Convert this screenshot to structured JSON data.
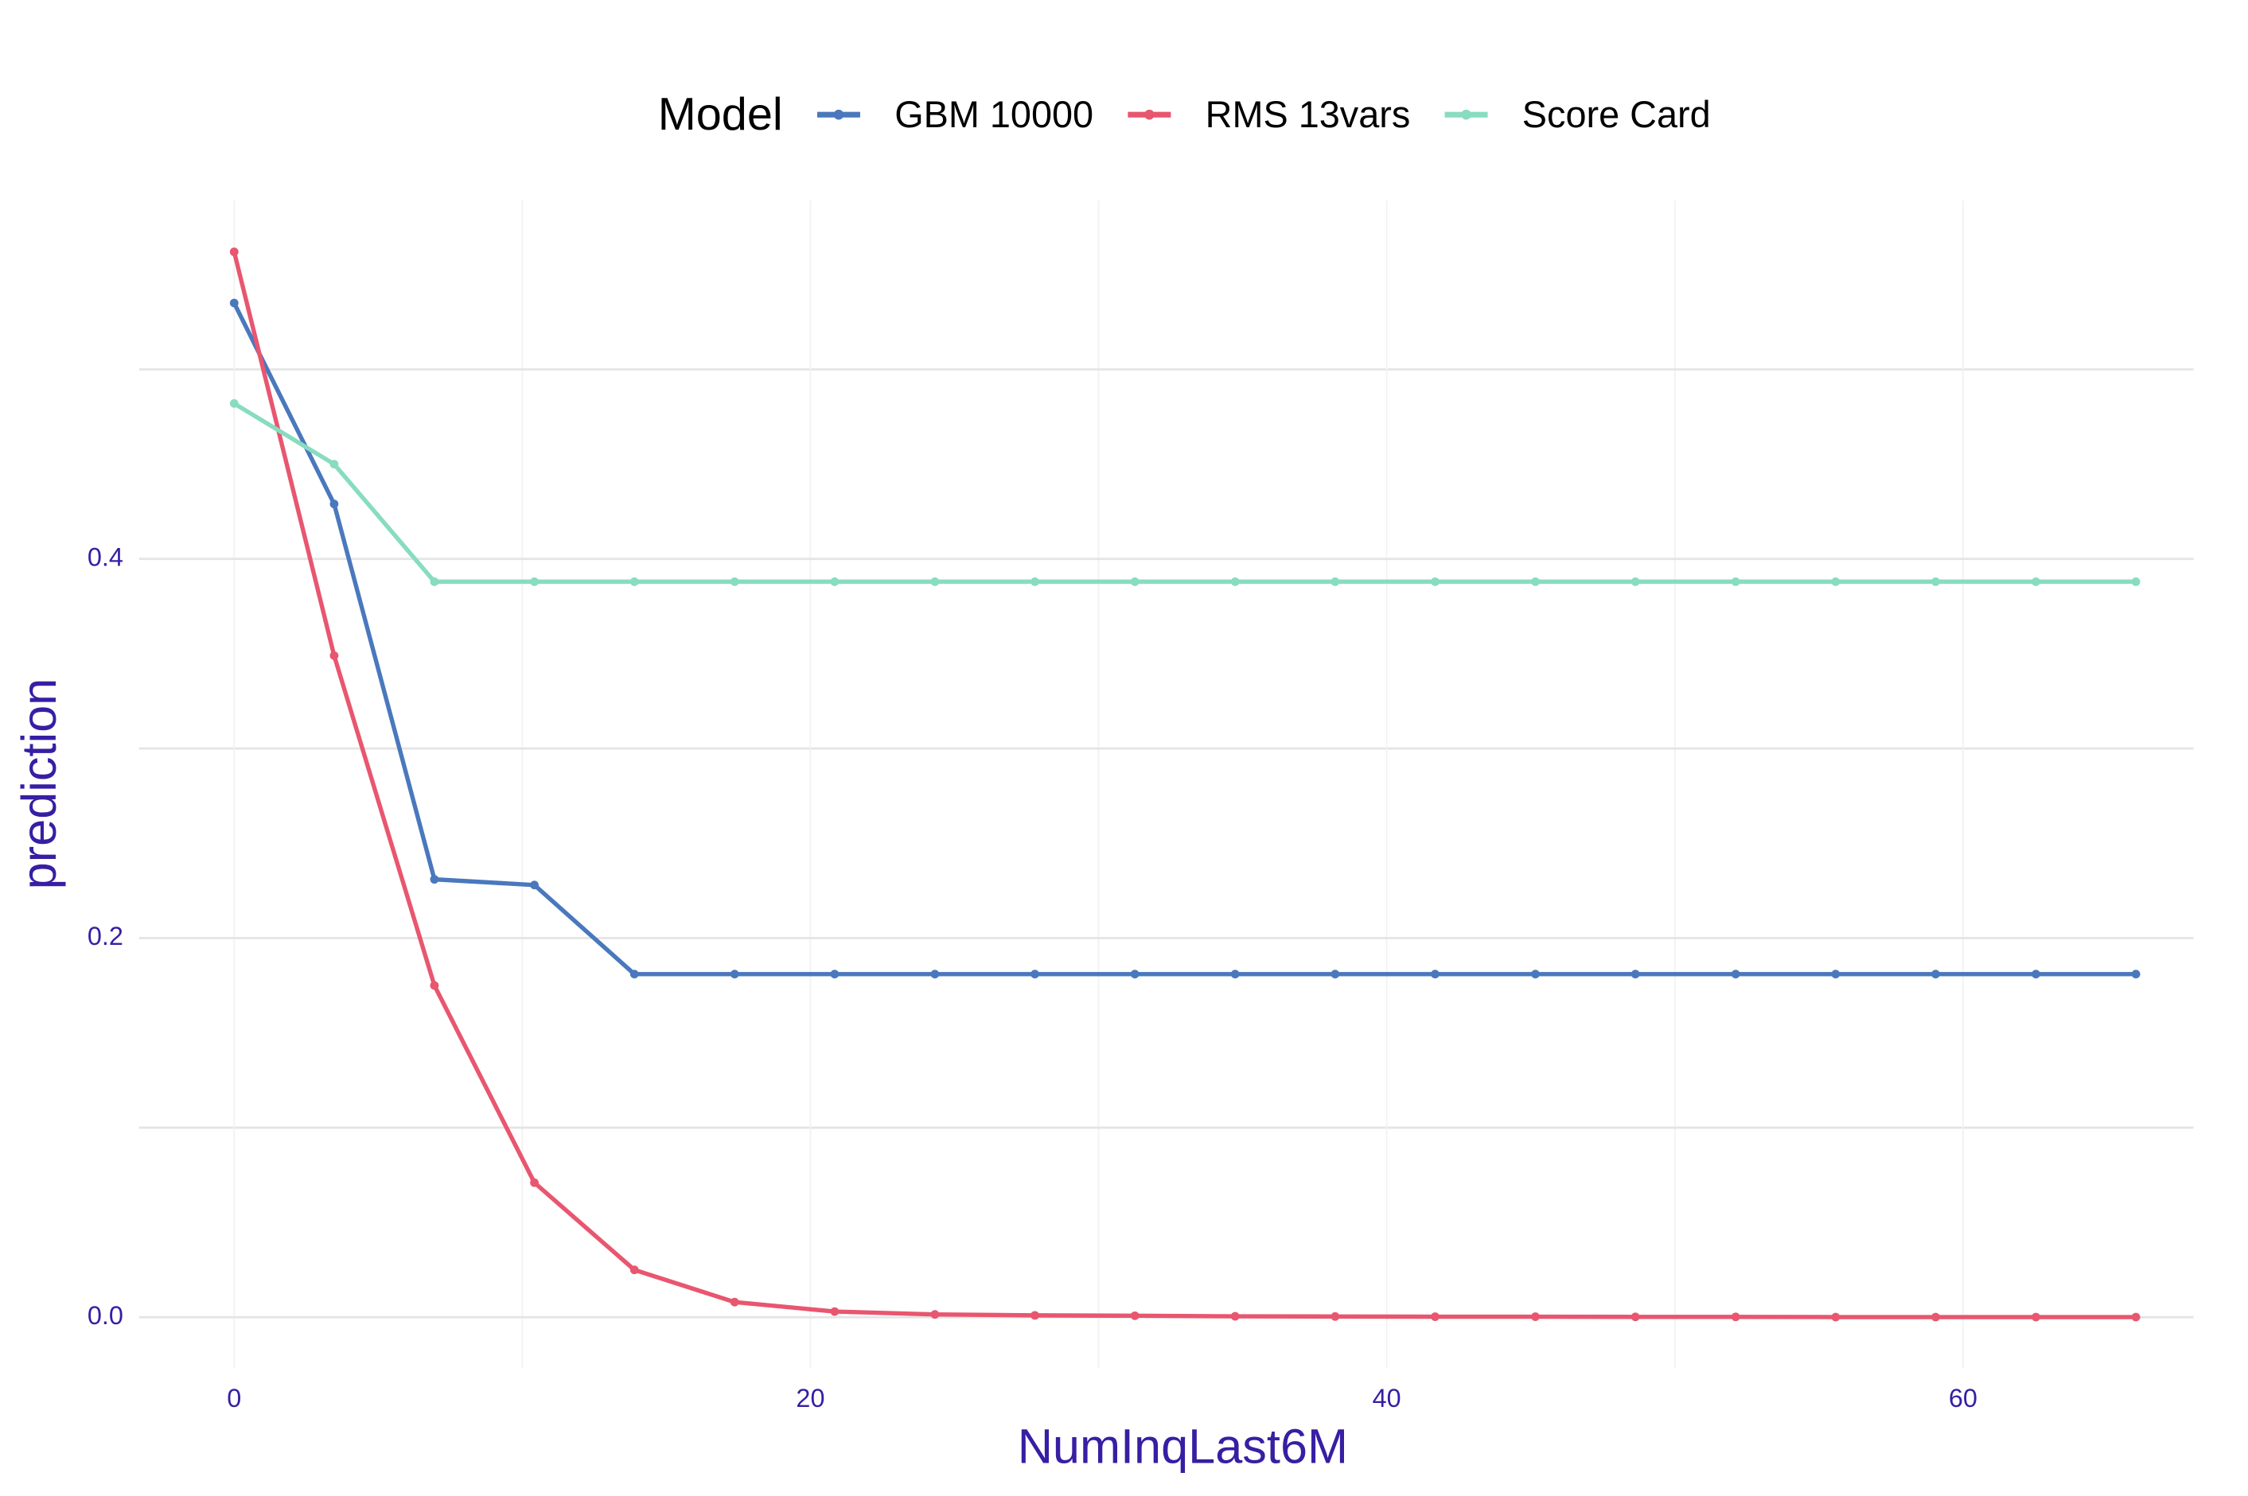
{
  "chart_data": {
    "type": "line",
    "legend_title": "Model",
    "x_label": "NumInqLast6M",
    "y_label": "prediction",
    "x": [
      0,
      3.47,
      6.95,
      10.42,
      13.89,
      17.37,
      20.84,
      24.32,
      27.79,
      31.26,
      34.74,
      38.21,
      41.68,
      45.16,
      48.63,
      52.11,
      55.58,
      59.05,
      62.53,
      66
    ],
    "series": [
      {
        "name": "GBM 10000",
        "color": "#4a78bd",
        "values": [
          0.535,
          0.429,
          0.231,
          0.228,
          0.181,
          0.181,
          0.181,
          0.181,
          0.181,
          0.181,
          0.181,
          0.181,
          0.181,
          0.181,
          0.181,
          0.181,
          0.181,
          0.181,
          0.181,
          0.181
        ]
      },
      {
        "name": "RMS 13vars",
        "color": "#e8566f",
        "values": [
          0.562,
          0.349,
          0.175,
          0.071,
          0.025,
          0.008,
          0.003,
          0.0015,
          0.001,
          0.0008,
          0.0005,
          0.0004,
          0.0003,
          0.0003,
          0.0002,
          0.0002,
          0.0001,
          0.0001,
          0.0001,
          0.0001
        ]
      },
      {
        "name": "Score Card",
        "color": "#88dcc0",
        "values": [
          0.482,
          0.45,
          0.388,
          0.388,
          0.388,
          0.388,
          0.388,
          0.388,
          0.388,
          0.388,
          0.388,
          0.388,
          0.388,
          0.388,
          0.388,
          0.388,
          0.388,
          0.388,
          0.388,
          0.388
        ]
      }
    ],
    "xlim": [
      -3.3,
      68.0
    ],
    "ylim": [
      -0.027,
      0.589
    ],
    "xticks": [
      0,
      20,
      40,
      60
    ],
    "yticks": [
      {
        "value": 0,
        "label": "0.0"
      },
      0.2,
      0.4
    ],
    "x_minor_ticks": [
      10,
      30,
      50
    ],
    "y_minor_ticks": [
      0.1,
      0.3,
      0.5
    ],
    "grid": true,
    "legend_position": "top"
  }
}
